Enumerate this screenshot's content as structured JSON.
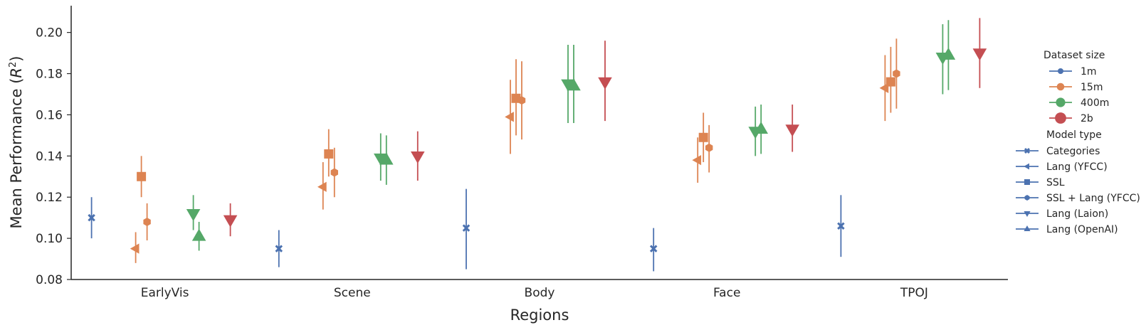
{
  "chart_data": {
    "type": "scatter",
    "title": "",
    "xlabel": "Regions",
    "ylabel": "Mean Performance (",
    "ylabel_math": "R",
    "ylabel_sup": "2",
    "ylabel_close": ")",
    "categories": [
      "EarlyVis",
      "Scene",
      "Body",
      "Face",
      "TPOJ"
    ],
    "ylim": [
      0.08,
      0.213
    ],
    "yticks": [
      "0.08",
      "0.10",
      "0.12",
      "0.14",
      "0.16",
      "0.18",
      "0.20"
    ],
    "grid": false,
    "legend_position": "right",
    "colors": {
      "1m": "#4c72b0",
      "15m": "#dd8452",
      "400m": "#55a868",
      "2b": "#c44e52"
    },
    "legend": {
      "size_title": "Dataset size",
      "sizes": [
        {
          "label": "1m",
          "color": "#4c72b0",
          "marker": "circle"
        },
        {
          "label": "15m",
          "color": "#dd8452",
          "marker": "circle"
        },
        {
          "label": "400m",
          "color": "#55a868",
          "marker": "circle"
        },
        {
          "label": "2b",
          "color": "#c44e52",
          "marker": "circle"
        }
      ],
      "type_title": "Model type",
      "types": [
        {
          "label": "Categories",
          "marker": "x"
        },
        {
          "label": "Lang (YFCC)",
          "marker": "triangle-left"
        },
        {
          "label": "SSL",
          "marker": "square"
        },
        {
          "label": "SSL + Lang (YFCC)",
          "marker": "hexagon"
        },
        {
          "label": "Lang (Laion)",
          "marker": "triangle-down"
        },
        {
          "label": "Lang (OpenAI)",
          "marker": "triangle-up"
        }
      ]
    },
    "series": [
      {
        "model": "Categories",
        "size": "1m",
        "marker": "x",
        "values": [
          0.11,
          0.095,
          0.105,
          0.095,
          0.106
        ],
        "low": [
          0.1,
          0.086,
          0.085,
          0.084,
          0.091
        ],
        "high": [
          0.12,
          0.104,
          0.124,
          0.105,
          0.121
        ]
      },
      {
        "model": "Lang (YFCC)",
        "size": "15m",
        "marker": "triangle-left",
        "values": [
          0.095,
          0.125,
          0.159,
          0.138,
          0.173
        ],
        "low": [
          0.088,
          0.114,
          0.141,
          0.127,
          0.157
        ],
        "high": [
          0.103,
          0.137,
          0.177,
          0.149,
          0.189
        ]
      },
      {
        "model": "SSL",
        "size": "15m",
        "marker": "square",
        "values": [
          0.13,
          0.141,
          0.168,
          0.149,
          0.176
        ],
        "low": [
          0.12,
          0.13,
          0.15,
          0.137,
          0.161
        ],
        "high": [
          0.14,
          0.153,
          0.187,
          0.161,
          0.193
        ]
      },
      {
        "model": "SSL + Lang (YFCC)",
        "size": "15m",
        "marker": "hexagon",
        "values": [
          0.108,
          0.132,
          0.167,
          0.144,
          0.18
        ],
        "low": [
          0.099,
          0.12,
          0.148,
          0.132,
          0.163
        ],
        "high": [
          0.117,
          0.144,
          0.186,
          0.155,
          0.197
        ]
      },
      {
        "model": "Lang (Laion)",
        "size": "400m",
        "marker": "triangle-down",
        "values": [
          0.112,
          0.139,
          0.175,
          0.152,
          0.188
        ],
        "low": [
          0.104,
          0.128,
          0.156,
          0.14,
          0.17
        ],
        "high": [
          0.121,
          0.151,
          0.194,
          0.164,
          0.204
        ]
      },
      {
        "model": "Lang (OpenAI)",
        "size": "400m",
        "marker": "triangle-up",
        "values": [
          0.101,
          0.138,
          0.174,
          0.153,
          0.189
        ],
        "low": [
          0.094,
          0.126,
          0.156,
          0.141,
          0.172
        ],
        "high": [
          0.108,
          0.15,
          0.194,
          0.165,
          0.206
        ]
      },
      {
        "model": "Lang (Laion)",
        "size": "2b",
        "marker": "triangle-down",
        "values": [
          0.109,
          0.14,
          0.176,
          0.153,
          0.19
        ],
        "low": [
          0.101,
          0.128,
          0.157,
          0.142,
          0.173
        ],
        "high": [
          0.117,
          0.152,
          0.196,
          0.165,
          0.207
        ]
      }
    ]
  }
}
